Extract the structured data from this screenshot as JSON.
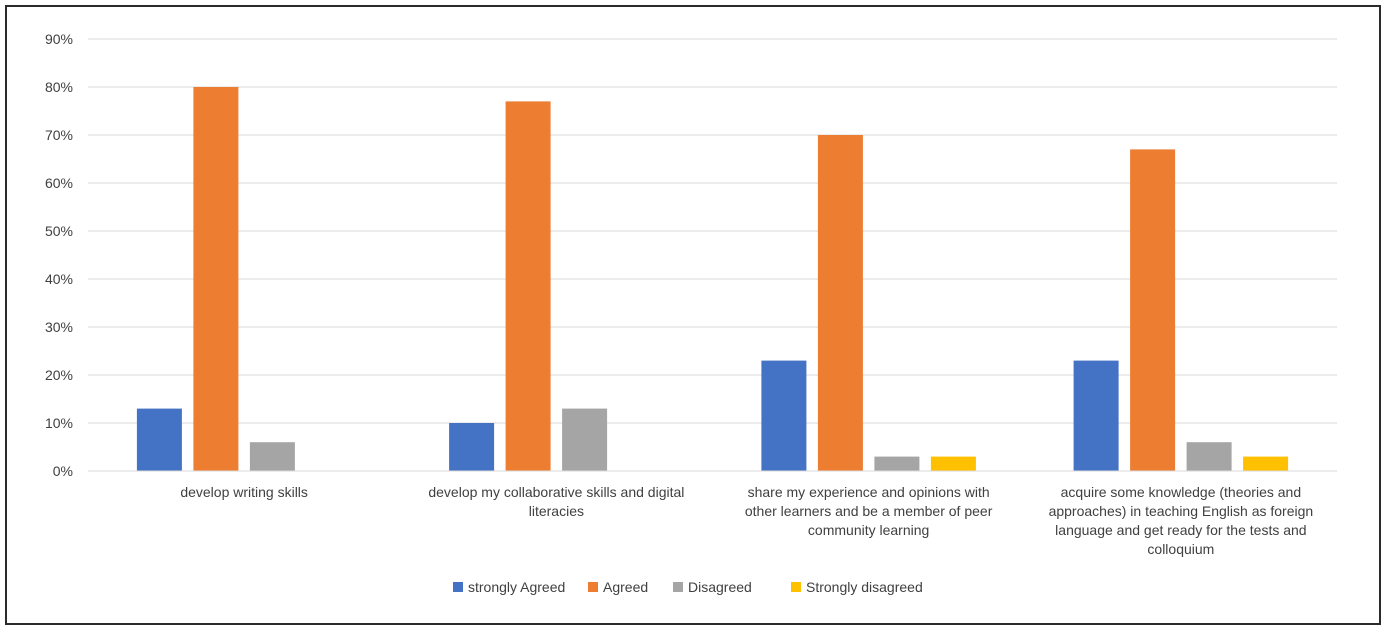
{
  "chart_data": {
    "type": "bar",
    "title": "",
    "xlabel": "",
    "ylabel": "",
    "ylim": [
      0,
      90
    ],
    "y_ticks": [
      "0%",
      "10%",
      "20%",
      "30%",
      "40%",
      "50%",
      "60%",
      "70%",
      "80%",
      "90%"
    ],
    "grid": "horizontal",
    "legend_position": "bottom",
    "categories": [
      [
        "develop writing skills"
      ],
      [
        "develop my collaborative skills and digital",
        "literacies"
      ],
      [
        "share my experience and opinions with",
        "other learners and be a member of peer",
        "community learning"
      ],
      [
        "acquire some knowledge (theories and",
        "approaches) in teaching English as foreign",
        "language and get ready for the tests and",
        "colloquium"
      ]
    ],
    "series": [
      {
        "name": "strongly Agreed",
        "color": "#4472C4",
        "values": [
          13,
          10,
          23,
          23
        ]
      },
      {
        "name": "Agreed",
        "color": "#ED7D31",
        "values": [
          80,
          77,
          70,
          67
        ]
      },
      {
        "name": "Disagreed",
        "color": "#A5A5A5",
        "values": [
          6,
          13,
          3,
          6
        ]
      },
      {
        "name": "Strongly disagreed",
        "color": "#FFC000",
        "values": [
          0,
          0,
          3,
          3
        ]
      }
    ]
  }
}
